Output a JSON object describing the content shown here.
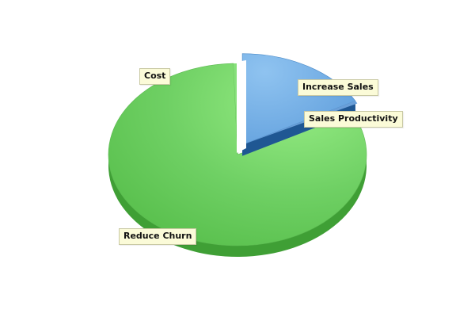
{
  "chart_data": {
    "type": "pie",
    "style": "3d-exploded",
    "labels": [
      "Increase Sales",
      "Sales Productivity",
      "Reduce Churn",
      "Cost"
    ],
    "values": [
      17,
      0.5,
      82,
      0.5
    ],
    "colors": {
      "Increase Sales": "#7bb4e8",
      "Sales Productivity": "#6a9fd8",
      "Reduce Churn": "#6fd064",
      "Cost": "#86e07a"
    },
    "grid": false,
    "legend": "none"
  },
  "callouts": [
    {
      "label": "Increase Sales"
    },
    {
      "label": "Sales Productivity"
    },
    {
      "label": "Cost"
    },
    {
      "label": "Reduce Churn"
    }
  ]
}
